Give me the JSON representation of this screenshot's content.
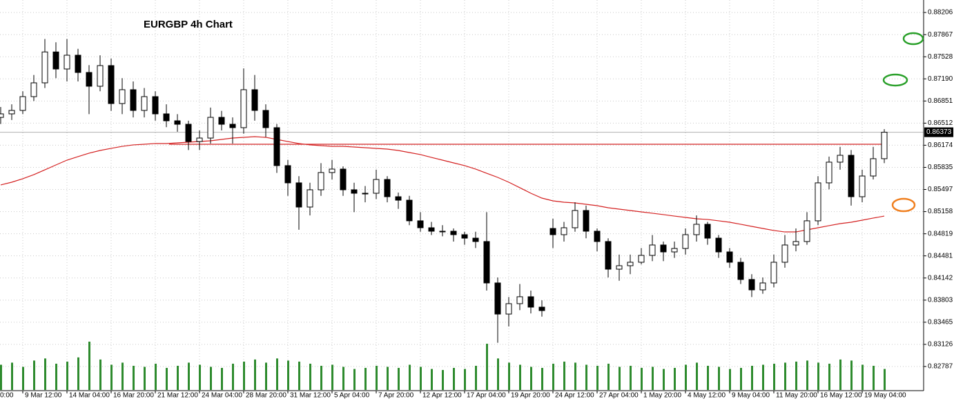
{
  "chart_data": {
    "type": "candlestick",
    "title": "EURGBP 4h Chart",
    "open": [
      0.866,
      0.86654,
      0.86707,
      0.86918,
      0.87129,
      0.87602,
      0.87341,
      0.87552,
      0.87288,
      0.87077,
      0.87393,
      0.86812,
      0.87024,
      0.86707,
      0.86918,
      0.86654,
      0.86548,
      0.86495,
      0.86231,
      0.86284,
      0.86601,
      0.86495,
      0.86443,
      0.87024,
      0.86707,
      0.86443,
      0.85862,
      0.85598,
      0.85228,
      0.85492,
      0.85756,
      0.85809,
      0.85492,
      0.85439,
      0.85439,
      0.8565,
      0.85386,
      0.85333,
      0.85017,
      0.84911,
      0.84858,
      0.84858,
      0.84805,
      0.84752,
      0.847,
      0.84066,
      0.8359,
      0.83749,
      0.83855,
      0.83696,
      0.849,
      0.84805,
      0.84911,
      0.85175,
      0.84858,
      0.847,
      0.84277,
      0.8433,
      0.84383,
      0.84488,
      0.84647,
      0.84541,
      0.84594,
      0.84805,
      0.84964,
      0.84752,
      0.84541,
      0.84383,
      0.84119,
      0.8396,
      0.84066,
      0.84383,
      0.84647,
      0.847,
      0.85017,
      0.85598,
      0.85915,
      0.8602,
      0.85386,
      0.85703,
      0.85968
    ],
    "high": [
      0.8676,
      0.868,
      0.87,
      0.8725,
      0.878,
      0.8775,
      0.878,
      0.8765,
      0.874,
      0.8755,
      0.875,
      0.872,
      0.8715,
      0.8705,
      0.87,
      0.868,
      0.8665,
      0.8655,
      0.864,
      0.8675,
      0.867,
      0.866,
      0.8735,
      0.8725,
      0.868,
      0.865,
      0.8595,
      0.857,
      0.856,
      0.859,
      0.8595,
      0.8585,
      0.856,
      0.8555,
      0.858,
      0.857,
      0.8545,
      0.854,
      0.8515,
      0.85,
      0.8495,
      0.849,
      0.8485,
      0.8485,
      0.8515,
      0.8415,
      0.8385,
      0.8405,
      0.8395,
      0.838,
      0.8505,
      0.85,
      0.853,
      0.8525,
      0.849,
      0.8475,
      0.845,
      0.845,
      0.846,
      0.848,
      0.847,
      0.847,
      0.849,
      0.851,
      0.85,
      0.848,
      0.846,
      0.8445,
      0.842,
      0.8415,
      0.845,
      0.848,
      0.849,
      0.8515,
      0.857,
      0.86,
      0.8615,
      0.861,
      0.858,
      0.8615,
      0.8642
    ],
    "low": [
      0.865,
      0.8656,
      0.8665,
      0.8685,
      0.8705,
      0.872,
      0.8715,
      0.8715,
      0.8665,
      0.87,
      0.867,
      0.8665,
      0.866,
      0.866,
      0.8655,
      0.8645,
      0.8638,
      0.861,
      0.861,
      0.862,
      0.864,
      0.862,
      0.8635,
      0.8655,
      0.863,
      0.8575,
      0.854,
      0.8488,
      0.851,
      0.854,
      0.8565,
      0.854,
      0.8515,
      0.853,
      0.8535,
      0.853,
      0.852,
      0.8495,
      0.8485,
      0.848,
      0.8478,
      0.847,
      0.8465,
      0.846,
      0.8395,
      0.8315,
      0.834,
      0.8365,
      0.836,
      0.8355,
      0.846,
      0.847,
      0.8485,
      0.8475,
      0.8455,
      0.8415,
      0.841,
      0.842,
      0.8435,
      0.844,
      0.844,
      0.8445,
      0.845,
      0.847,
      0.8465,
      0.8445,
      0.843,
      0.8405,
      0.8385,
      0.839,
      0.84,
      0.843,
      0.8455,
      0.8465,
      0.8495,
      0.855,
      0.858,
      0.8525,
      0.853,
      0.8565,
      0.859
    ],
    "close": [
      0.86654,
      0.86707,
      0.86918,
      0.87129,
      0.87602,
      0.87341,
      0.87552,
      0.87288,
      0.87077,
      0.87393,
      0.86812,
      0.87024,
      0.86707,
      0.86918,
      0.86654,
      0.86548,
      0.86495,
      0.86231,
      0.86284,
      0.86601,
      0.86495,
      0.86443,
      0.87024,
      0.86707,
      0.86443,
      0.85862,
      0.85598,
      0.85228,
      0.85492,
      0.85756,
      0.85809,
      0.85492,
      0.85439,
      0.85439,
      0.8565,
      0.85386,
      0.85333,
      0.85017,
      0.84911,
      0.84858,
      0.84858,
      0.84805,
      0.84752,
      0.847,
      0.84066,
      0.8359,
      0.83749,
      0.83855,
      0.83696,
      0.83643,
      0.84805,
      0.84911,
      0.85175,
      0.84858,
      0.847,
      0.84277,
      0.8433,
      0.84383,
      0.84488,
      0.84647,
      0.84541,
      0.84594,
      0.84805,
      0.84964,
      0.84752,
      0.84541,
      0.84383,
      0.84119,
      0.8396,
      0.84066,
      0.84383,
      0.84647,
      0.847,
      0.85017,
      0.85598,
      0.85915,
      0.8602,
      0.85386,
      0.85703,
      0.85968,
      0.86373
    ],
    "volume": [
      2400,
      2600,
      2200,
      2800,
      3000,
      2500,
      2700,
      3100,
      4600,
      2900,
      2400,
      2600,
      2300,
      2200,
      2500,
      2100,
      2300,
      2600,
      2400,
      2200,
      2100,
      2500,
      2700,
      2900,
      2600,
      3000,
      2800,
      2700,
      2500,
      2300,
      2400,
      2200,
      2000,
      2100,
      2300,
      2200,
      2100,
      2400,
      2200,
      2000,
      1900,
      2100,
      2000,
      2300,
      4400,
      3000,
      2600,
      2400,
      2200,
      2100,
      2500,
      2700,
      2600,
      2400,
      2300,
      2500,
      2200,
      2300,
      2100,
      2200,
      2000,
      2100,
      2400,
      2600,
      2300,
      2200,
      2000,
      2100,
      2300,
      2400,
      2500,
      2600,
      2700,
      2800,
      2600,
      2500,
      2900,
      2800,
      2400,
      2300,
      2000
    ],
    "ma": [
      0.85566,
      0.85608,
      0.85661,
      0.85724,
      0.85798,
      0.85872,
      0.85946,
      0.85999,
      0.86052,
      0.86094,
      0.86126,
      0.86157,
      0.86179,
      0.86189,
      0.862,
      0.862,
      0.8621,
      0.86221,
      0.86231,
      0.86242,
      0.86263,
      0.86284,
      0.86295,
      0.86305,
      0.86295,
      0.86263,
      0.86231,
      0.862,
      0.86179,
      0.86168,
      0.86157,
      0.86157,
      0.86147,
      0.86136,
      0.86126,
      0.86115,
      0.86094,
      0.86062,
      0.86031,
      0.85988,
      0.85946,
      0.85904,
      0.85862,
      0.85809,
      0.85745,
      0.85682,
      0.85608,
      0.85524,
      0.85439,
      0.85365,
      0.85323,
      0.85302,
      0.85291,
      0.8527,
      0.85249,
      0.85217,
      0.85196,
      0.85175,
      0.85154,
      0.85133,
      0.85112,
      0.8509,
      0.85069,
      0.85048,
      0.85038,
      0.85017,
      0.84995,
      0.84964,
      0.84932,
      0.849,
      0.84869,
      0.84847,
      0.84847,
      0.84879,
      0.84911,
      0.84943,
      0.84974,
      0.84995,
      0.85027,
      0.85059,
      0.8509
    ],
    "ma_color": "#d42020",
    "hline": 0.86189,
    "hline_color": "#d42020",
    "volume_color": "#2e8b2e",
    "last_price": 0.86373,
    "ylim": [
      0.82407,
      0.88397
    ],
    "yticks": [
      0.88206,
      0.87867,
      0.87528,
      {
        "value": 0.8719,
        "label": "0.87190"
      },
      0.86851,
      0.86512,
      0.86174,
      0.85835,
      0.85497,
      0.85158,
      0.84819,
      0.84481,
      0.84142,
      0.83803,
      0.83465,
      0.83126,
      0.82787
    ],
    "xtick_labels": [
      "0:00",
      "9 Mar 12:00",
      "14 Mar 04:00",
      "16 Mar 20:00",
      "21 Mar 12:00",
      "24 Mar 04:00",
      "28 Mar 20:00",
      "31 Mar 12:00",
      "5 Apr 04:00",
      "7 Apr 20:00",
      "12 Apr 12:00",
      "17 Apr 04:00",
      "19 Apr 20:00",
      "24 Apr 12:00",
      "27 Apr 04:00",
      "1 May 20:00",
      "4 May 12:00",
      "9 May 04:00",
      "11 May 20:00",
      "16 May 12:00",
      "19 May 04:00"
    ],
    "grid": true
  }
}
